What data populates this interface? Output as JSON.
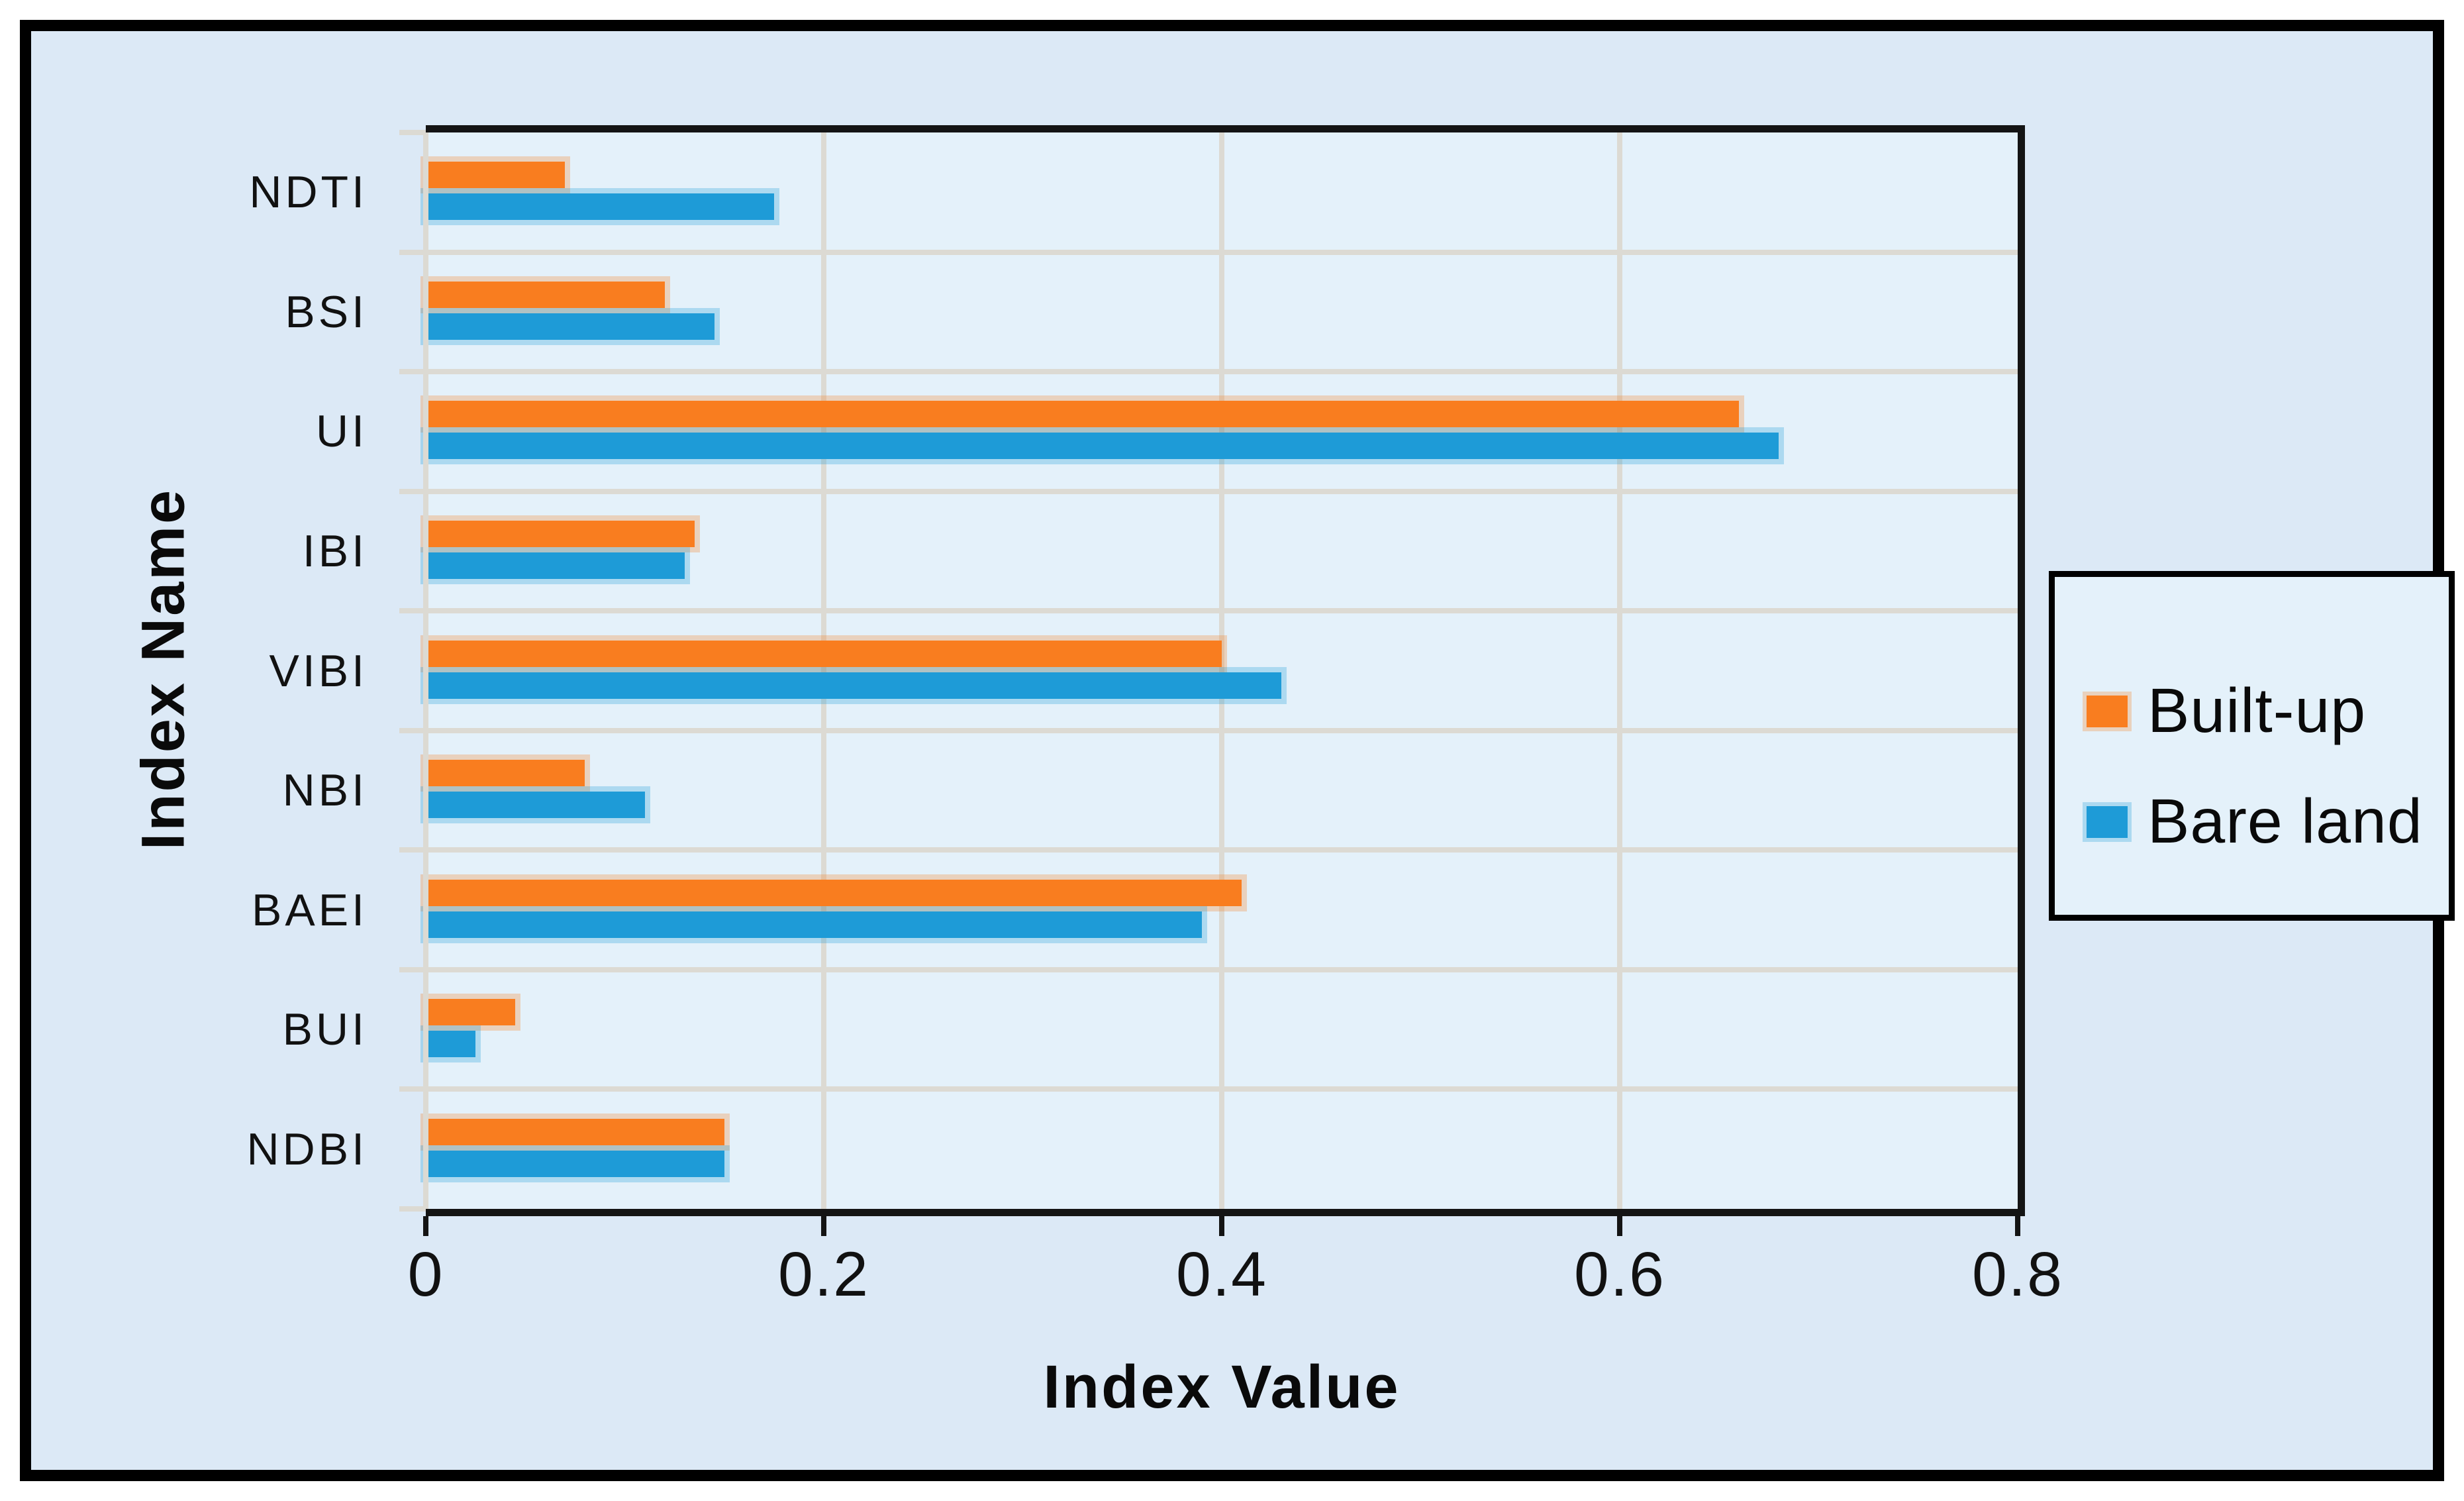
{
  "chart_data": {
    "type": "bar",
    "orientation": "horizontal",
    "title": "",
    "categories": [
      "NDTI",
      "BSI",
      "UI",
      "IBI",
      "VIBI",
      "NBI",
      "BAEI",
      "BUI",
      "NDBI"
    ],
    "series": [
      {
        "name": "Built-up",
        "color": "#f97d1f",
        "values": [
          0.07,
          0.12,
          0.66,
          0.135,
          0.4,
          0.08,
          0.41,
          0.045,
          0.15
        ]
      },
      {
        "name": "Bare land",
        "color": "#1e9bd7",
        "values": [
          0.175,
          0.145,
          0.68,
          0.13,
          0.43,
          0.11,
          0.39,
          0.025,
          0.15
        ]
      }
    ],
    "xlabel": "Index Value",
    "ylabel": "Index Name",
    "xlim": [
      0,
      0.8
    ],
    "xticks": [
      0,
      0.2,
      0.4,
      0.6,
      0.8
    ],
    "xtick_labels": [
      "0",
      "0.2",
      "0.4",
      "0.6",
      "0.8"
    ],
    "grid": true,
    "legend_position": "right",
    "colors": {
      "page_margin": "#ffffff",
      "outer_border": "#000000",
      "figure_background": "#dce9f6",
      "plot_background": "#e4f1fa",
      "legend_background": "#e4f1fa",
      "gridline": "#dcdad3",
      "axis_frame": "#141414",
      "text": "#111111"
    }
  }
}
